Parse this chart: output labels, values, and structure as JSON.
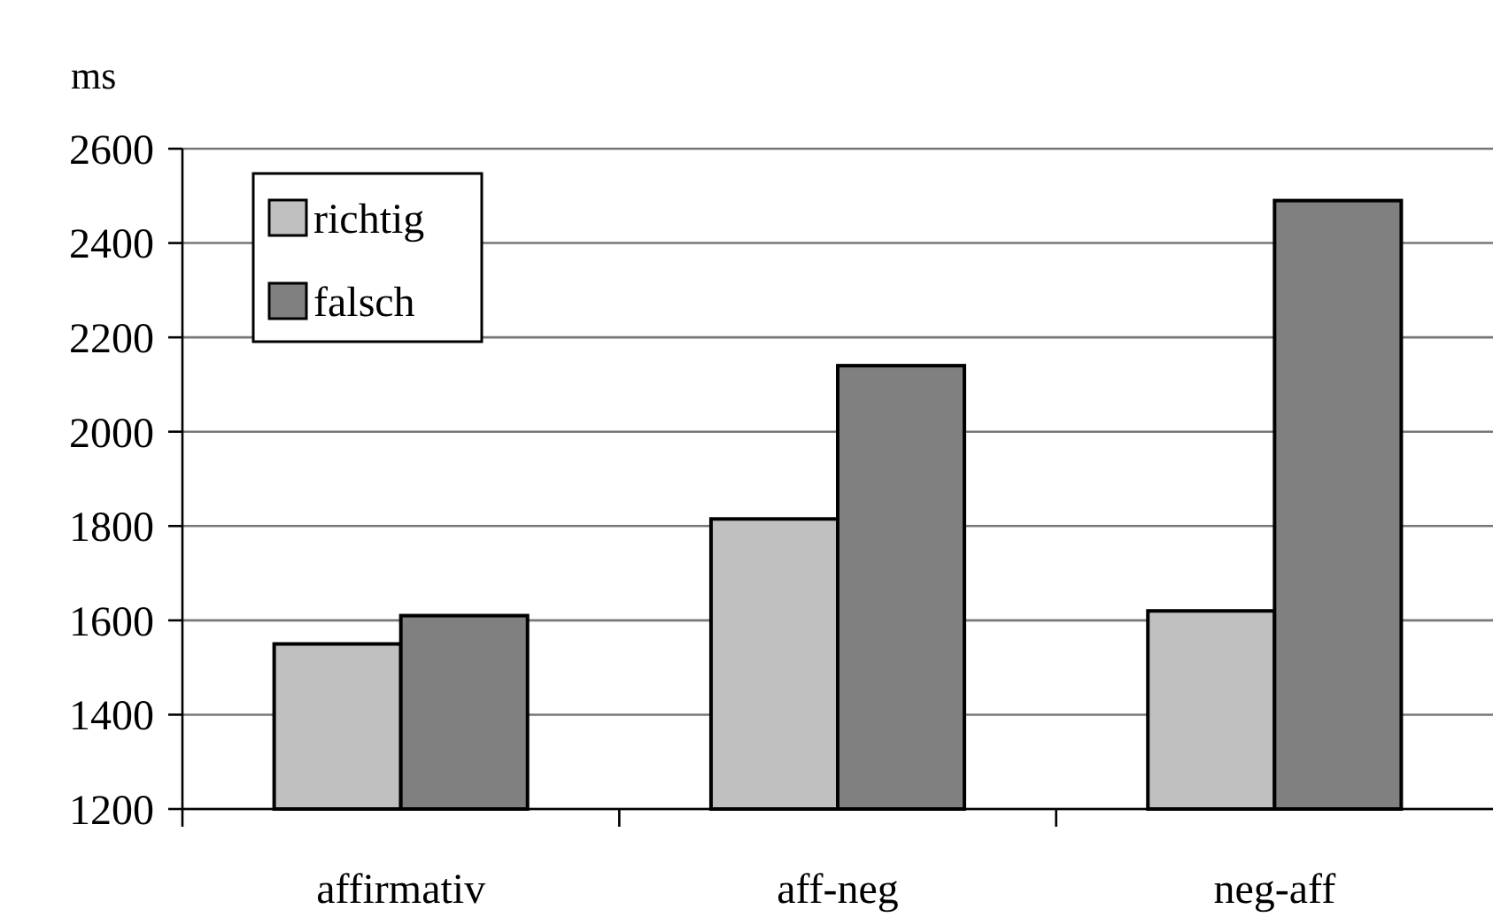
{
  "chart_data": {
    "type": "bar",
    "ylabel": "ms",
    "categories": [
      "affirmativ",
      "aff-neg",
      "neg-aff"
    ],
    "series": [
      {
        "name": "richtig",
        "color": "#c0c0c0",
        "values": [
          1550,
          1815,
          1620
        ]
      },
      {
        "name": "falsch",
        "color": "#808080",
        "values": [
          1610,
          2140,
          2490
        ]
      }
    ],
    "ylim": [
      1200,
      2600
    ],
    "yticks": [
      1200,
      1400,
      1600,
      1800,
      2000,
      2200,
      2400,
      2600
    ],
    "grid": "y",
    "legend": "top left"
  }
}
